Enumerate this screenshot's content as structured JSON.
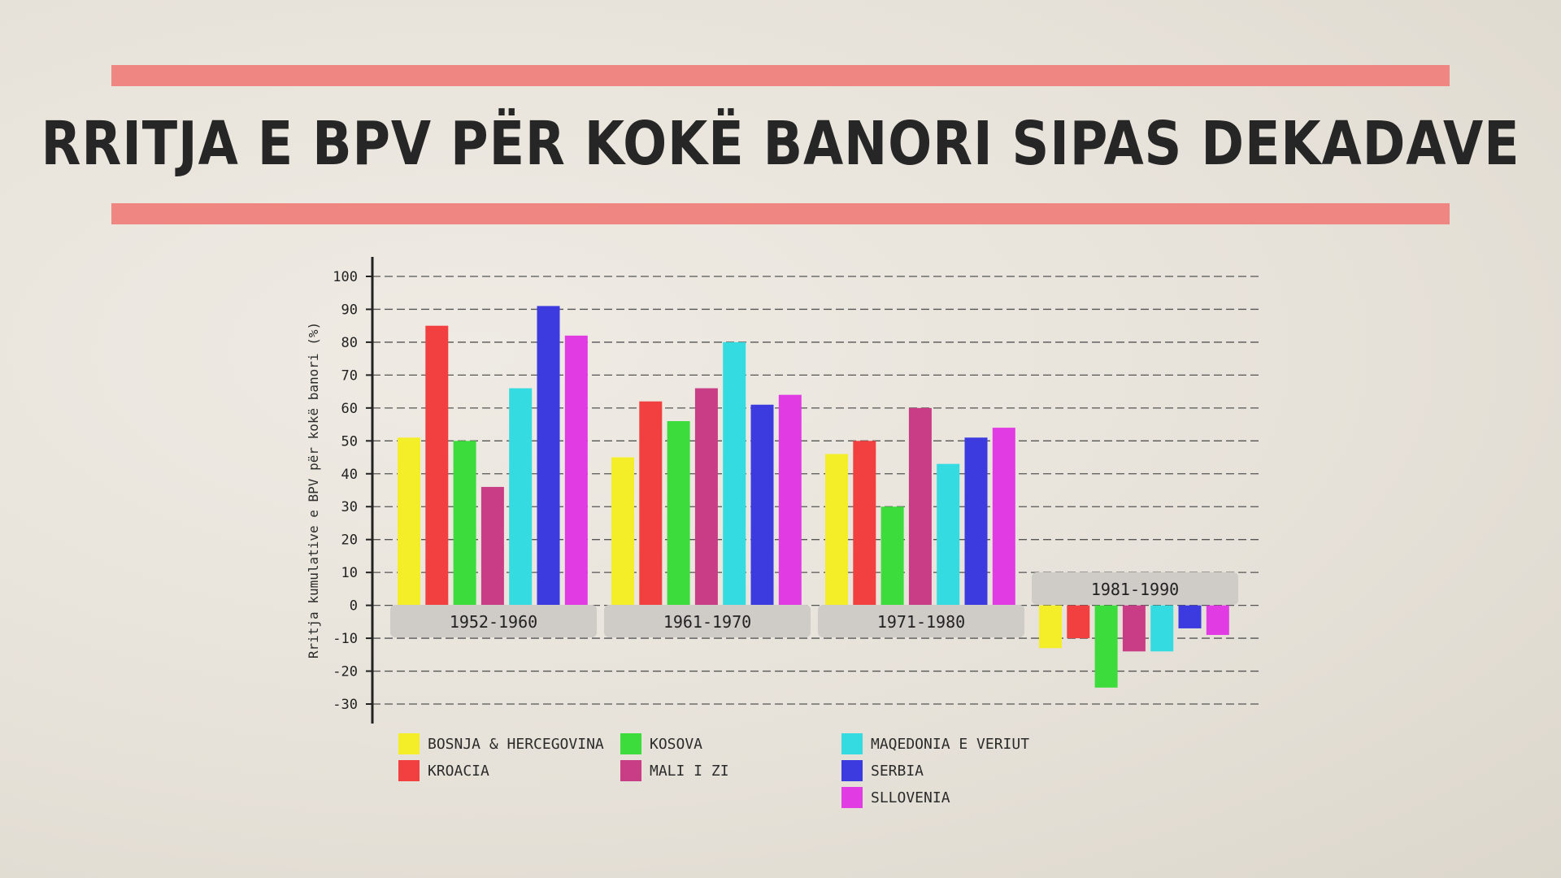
{
  "title": "RRITJA E BPV PËR KOKË BANORI SIPAS DEKADAVE",
  "chart_data": {
    "type": "bar",
    "ylabel": "Rritja kumulative e BPV për kokë banori (%)",
    "ylim": [
      -30,
      100
    ],
    "yticks": [
      100,
      90,
      80,
      70,
      60,
      50,
      40,
      30,
      20,
      10,
      0,
      -10,
      -20,
      -30
    ],
    "grid": true,
    "legend_placement": "bottom",
    "categories": [
      "1952-1960",
      "1961-1970",
      "1971-1980",
      "1981-1990"
    ],
    "series": [
      {
        "name": "BOSNJA & HERCEGOVINA",
        "color": "#f4ee29",
        "values": [
          51,
          45,
          46,
          -13
        ]
      },
      {
        "name": "KROACIA",
        "color": "#f23f3f",
        "values": [
          85,
          62,
          50,
          -10
        ]
      },
      {
        "name": "KOSOVA",
        "color": "#3cdc3c",
        "values": [
          50,
          56,
          30,
          -25
        ]
      },
      {
        "name": "MALI I ZI",
        "color": "#c93d86",
        "values": [
          36,
          66,
          60,
          -14
        ]
      },
      {
        "name": "MAQEDONIA E VERIUT",
        "color": "#34dce2",
        "values": [
          66,
          80,
          43,
          -14
        ]
      },
      {
        "name": "SERBIA",
        "color": "#3b3be0",
        "values": [
          91,
          61,
          51,
          -7
        ]
      },
      {
        "name": "SLLOVENIA",
        "color": "#e13be3",
        "values": [
          82,
          64,
          54,
          -9
        ]
      }
    ]
  }
}
